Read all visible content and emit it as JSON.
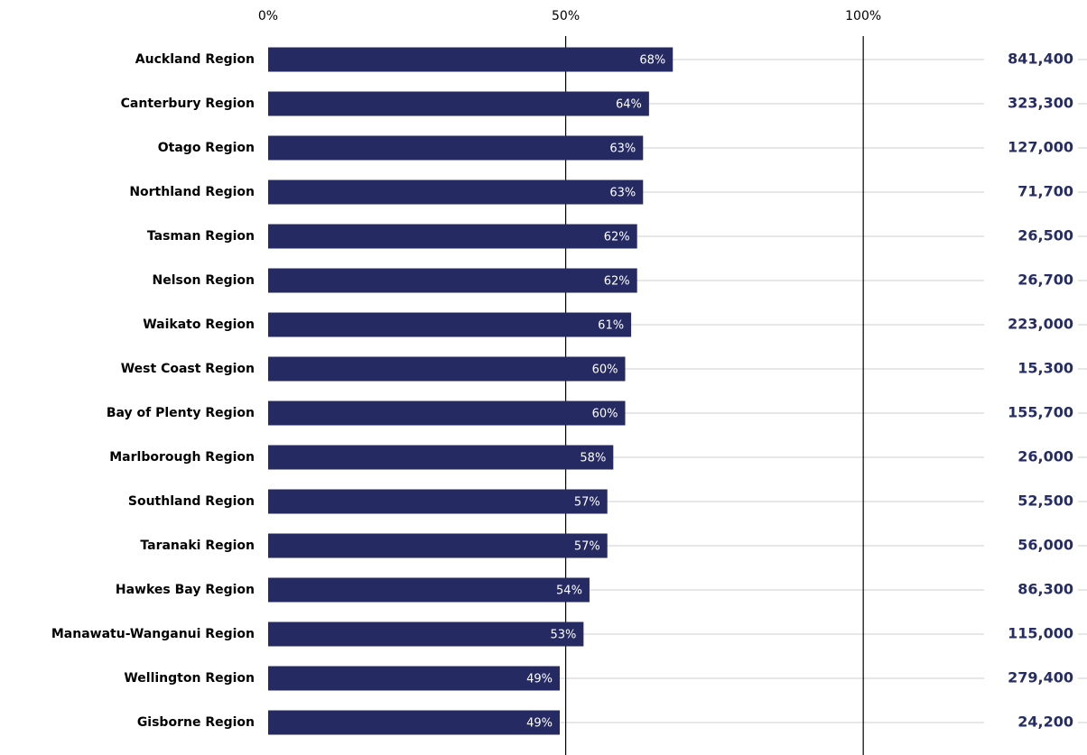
{
  "chart_data": {
    "type": "bar",
    "orientation": "horizontal",
    "color": "#252a62",
    "categories": [
      "Auckland Region",
      "Canterbury Region",
      "Otago Region",
      "Northland Region",
      "Tasman Region",
      "Nelson Region",
      "Waikato Region",
      "West Coast Region",
      "Bay of Plenty Region",
      "Marlborough Region",
      "Southland Region",
      "Taranaki Region",
      "Hawkes Bay Region",
      "Manawatu-Wanganui Region",
      "Wellington Region",
      "Gisborne Region"
    ],
    "values": [
      68,
      64,
      63,
      63,
      62,
      62,
      61,
      60,
      60,
      58,
      57,
      57,
      54,
      53,
      49,
      49
    ],
    "value_labels": [
      "68%",
      "64%",
      "63%",
      "63%",
      "62%",
      "62%",
      "61%",
      "60%",
      "60%",
      "58%",
      "57%",
      "57%",
      "54%",
      "53%",
      "49%",
      "49%"
    ],
    "populations": [
      841400,
      323300,
      127000,
      71700,
      26500,
      26700,
      223000,
      15300,
      155700,
      26000,
      52500,
      56000,
      86300,
      115000,
      279400,
      24200
    ],
    "population_labels": [
      "841,400",
      "323,300",
      "127,000",
      "71,700",
      "26,500",
      "26,700",
      "223,000",
      "15,300",
      "155,700",
      "26,000",
      "52,500",
      "56,000",
      "86,300",
      "115,000",
      "279,400",
      "24,200"
    ],
    "xlim": [
      0,
      120
    ],
    "xticks": [
      {
        "value": 0,
        "label": "0%"
      },
      {
        "value": 50,
        "label": "50%"
      },
      {
        "value": 100,
        "label": "100%"
      }
    ],
    "grid": true
  }
}
